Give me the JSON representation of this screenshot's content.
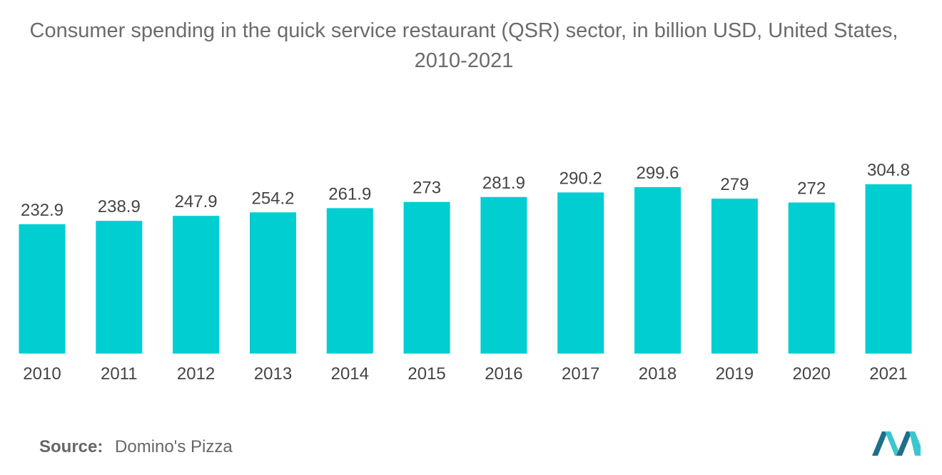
{
  "chart_data": {
    "type": "bar",
    "title": "Consumer spending in the quick service restaurant (QSR) sector, in billion USD, United States, 2010-2021",
    "categories": [
      "2010",
      "2011",
      "2012",
      "2013",
      "2014",
      "2015",
      "2016",
      "2017",
      "2018",
      "2019",
      "2020",
      "2021"
    ],
    "values": [
      232.9,
      238.9,
      247.9,
      254.2,
      261.9,
      273,
      281.9,
      290.2,
      299.6,
      279,
      272,
      304.8
    ],
    "data_labels": [
      "232.9",
      "238.9",
      "247.9",
      "254.2",
      "261.9",
      "273",
      "281.9",
      "290.2",
      "299.6",
      "279",
      "272",
      "304.8"
    ],
    "xlabel": "",
    "ylabel": "",
    "ylim": [
      0,
      304.8
    ],
    "grid": false,
    "legend": "none",
    "bar_color": "#00CED1"
  },
  "footer": {
    "source_label": "Source:",
    "source_value": "Domino's Pizza"
  },
  "logo": {
    "name": "mordor-intelligence-logo",
    "colors": [
      "#1f6f8b",
      "#3cc6cf"
    ]
  }
}
